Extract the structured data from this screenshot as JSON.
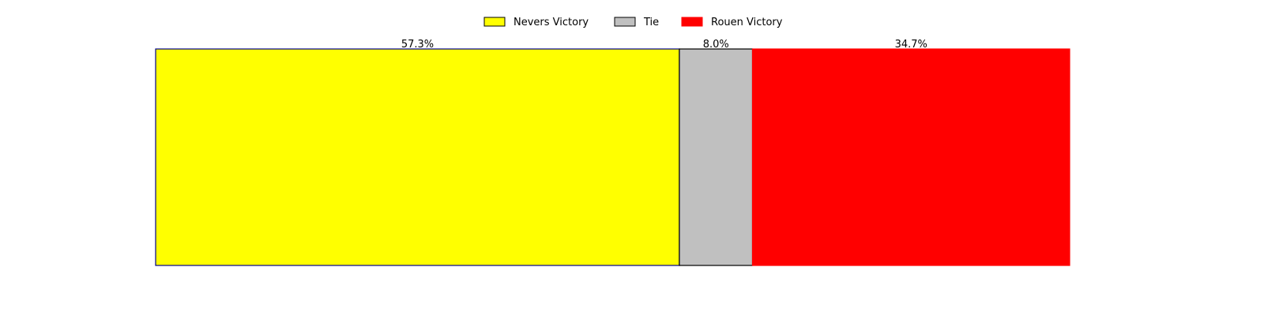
{
  "chart_data": {
    "type": "bar",
    "orientation": "horizontal-stacked-100",
    "categories": [
      "Nevers Victory",
      "Tie",
      "Rouen Victory"
    ],
    "values": [
      57.3,
      8.0,
      34.7
    ],
    "labels": [
      "57.3%",
      "8.0%",
      "34.7%"
    ],
    "colors": [
      "#ffff00",
      "#c0c0c0",
      "#ff0000"
    ],
    "edge_colors": [
      "#00008b",
      "#000000",
      "#ff0000"
    ],
    "legend": {
      "position": "top-center",
      "entries": [
        "Nevers Victory",
        "Tie",
        "Rouen Victory"
      ]
    },
    "xlim": [
      0,
      100
    ],
    "axes_visible": false,
    "grid": false
  }
}
